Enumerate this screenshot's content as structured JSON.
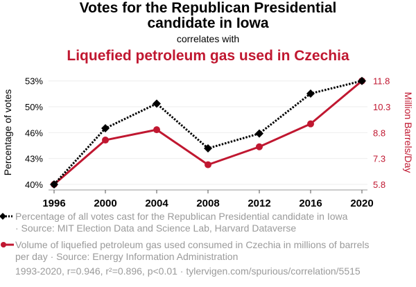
{
  "header": {
    "title_line1": "Votes for the Republican Presidential",
    "title_line2": "candidate in Iowa",
    "connector": "correlates with",
    "subtitle": "Liquefied petroleum gas used in Czechia"
  },
  "colors": {
    "series1": "#000000",
    "series2": "#c01730",
    "grid": "#eeeeee",
    "axis_text": "#000000",
    "muted_text": "#9a9a9a"
  },
  "chart_data": {
    "type": "line",
    "title": "Votes for the Republican Presidential candidate in Iowa correlates with Liquefied petroleum gas used in Czechia",
    "x": [
      1996,
      2000,
      2004,
      2008,
      2012,
      2016,
      2020
    ],
    "xticks": [
      "1996",
      "2000",
      "2004",
      "2008",
      "2012",
      "2016",
      "2020"
    ],
    "xlim": [
      1996,
      2020
    ],
    "grid": true,
    "legend_position": "bottom",
    "left_axis": {
      "label": "Percentage of votes",
      "ticks": [
        "40%",
        "43%",
        "46%",
        "50%",
        "53%"
      ],
      "ylim": [
        39.92,
        53.09
      ]
    },
    "right_axis": {
      "label": "Million Barrels/Day",
      "ticks": [
        "5.8",
        "7.3",
        "8.8",
        "10.3",
        "11.8"
      ],
      "ylim": [
        5.8,
        11.8
      ]
    },
    "series": [
      {
        "name": "Percentage of all votes cast for the Republican Presidential candidate in Iowa",
        "axis": "left",
        "style": "dotted",
        "marker": "diamond",
        "values": [
          39.92,
          47.06,
          50.2,
          44.51,
          46.39,
          51.48,
          53.09
        ]
      },
      {
        "name": "Volume of liquefied petroleum gas used consumed in Czechia in millions of barrels per day",
        "axis": "right",
        "style": "solid",
        "marker": "circle",
        "values": [
          5.8,
          8.37,
          8.97,
          6.94,
          7.98,
          9.31,
          11.8
        ]
      }
    ]
  },
  "legend": {
    "series1_line1": "Percentage of all votes cast for the Republican Presidential candidate in Iowa",
    "series1_line2": "· Source: MIT Election Data and Science Lab, Harvard Dataverse",
    "series2_line1": "Volume of liquefied petroleum gas used consumed in Czechia in millions of barrels",
    "series2_line2": "per day · Source: Energy Information Administration"
  },
  "footer": "1993-2020, r=0.946, r²=0.896, p<0.01 · tylervigen.com/spurious/correlation/5515"
}
